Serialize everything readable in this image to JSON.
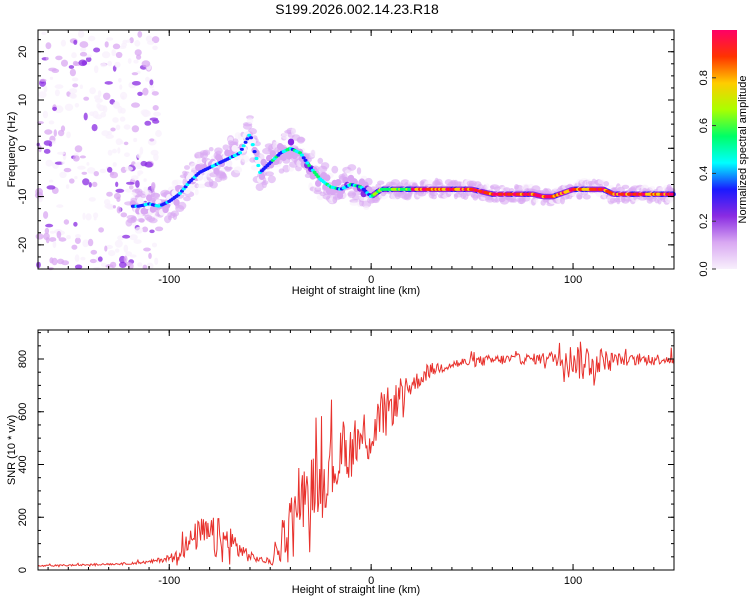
{
  "title": "S199.2026.002.14.23.R18",
  "chart_data": [
    {
      "type": "heatmap",
      "name": "spectrogram",
      "xlabel": "Height of straight line (km)",
      "ylabel": "Frequency (Hz)",
      "xlim": [
        -165,
        150
      ],
      "ylim": [
        -25,
        24.5
      ],
      "xticks": [
        -100,
        0,
        100
      ],
      "xtick_labels": [
        "-100",
        "0",
        "100"
      ],
      "yticks": [
        -20,
        -10,
        0,
        10,
        20
      ],
      "ytick_labels": [
        "-20",
        "-10",
        "0",
        "10",
        "20"
      ],
      "ridge": {
        "x": [
          -115,
          -110,
          -105,
          -100,
          -95,
          -90,
          -85,
          -80,
          -75,
          -70,
          -65,
          -60,
          -55,
          -50,
          -45,
          -40,
          -35,
          -30,
          -25,
          -20,
          -15,
          -10,
          -5,
          0,
          5,
          10,
          20,
          30,
          40,
          50,
          60,
          70,
          80,
          85,
          90,
          100,
          110,
          115,
          120,
          130,
          140,
          150
        ],
        "y": [
          -12,
          -11.5,
          -12,
          -11,
          -9.5,
          -7,
          -5,
          -4,
          -3,
          -2,
          -1,
          3,
          -5,
          -3,
          -1,
          0,
          -1,
          -4,
          -6.5,
          -8,
          -8.5,
          -7.5,
          -8,
          -10,
          -8.5,
          -8.5,
          -8.5,
          -8.5,
          -8.5,
          -8.5,
          -9.5,
          -9.5,
          -9.5,
          -10,
          -10,
          -8.5,
          -8.5,
          -8.5,
          -9.5,
          -9.5,
          -9.5,
          -9.5
        ]
      },
      "colorbar": {
        "label": "Normalized spectral amplitude",
        "range": [
          0,
          1
        ],
        "ticks": [
          0.0,
          0.2,
          0.4,
          0.6,
          0.8
        ],
        "tick_labels": [
          "0.0",
          "0.2",
          "0.4",
          "0.6",
          "0.8"
        ],
        "colormap": [
          "#f8f0fc",
          "#d9a8f2",
          "#8a2be2",
          "#1a1aff",
          "#00ffff",
          "#00ff66",
          "#aaff00",
          "#ffcc00",
          "#ff3300",
          "#ff0066"
        ]
      }
    },
    {
      "type": "line",
      "name": "snr",
      "xlabel": "Height of straight line (km)",
      "ylabel": "SNR (10 * v/v)",
      "xlim": [
        -165,
        150
      ],
      "ylim": [
        0,
        910
      ],
      "xticks": [
        -100,
        0,
        100
      ],
      "xtick_labels": [
        "-100",
        "0",
        "100"
      ],
      "yticks": [
        0,
        200,
        400,
        600,
        800
      ],
      "ytick_labels": [
        "0",
        "200",
        "400",
        "600",
        "800"
      ],
      "color": "#e8322d",
      "x": [
        -165,
        -150,
        -140,
        -130,
        -120,
        -110,
        -100,
        -95,
        -90,
        -85,
        -80,
        -75,
        -70,
        -65,
        -60,
        -55,
        -50,
        -45,
        -40,
        -35,
        -30,
        -25,
        -20,
        -15,
        -10,
        -5,
        0,
        5,
        10,
        15,
        20,
        25,
        30,
        40,
        50,
        60,
        70,
        80,
        90,
        100,
        105,
        110,
        120,
        130,
        140,
        150
      ],
      "y": [
        15,
        18,
        20,
        22,
        25,
        30,
        45,
        70,
        100,
        140,
        130,
        110,
        100,
        80,
        50,
        40,
        30,
        80,
        200,
        260,
        310,
        340,
        380,
        420,
        450,
        500,
        520,
        570,
        620,
        660,
        700,
        730,
        760,
        780,
        790,
        795,
        800,
        800,
        805,
        800,
        790,
        795,
        800,
        795,
        800,
        800
      ],
      "noise": [
        3,
        3,
        3,
        3,
        4,
        6,
        12,
        30,
        50,
        60,
        70,
        90,
        80,
        40,
        20,
        10,
        15,
        60,
        90,
        110,
        120,
        120,
        130,
        110,
        100,
        110,
        120,
        110,
        80,
        60,
        40,
        30,
        25,
        20,
        20,
        20,
        20,
        20,
        25,
        60,
        80,
        60,
        25,
        20,
        20,
        20
      ]
    }
  ]
}
